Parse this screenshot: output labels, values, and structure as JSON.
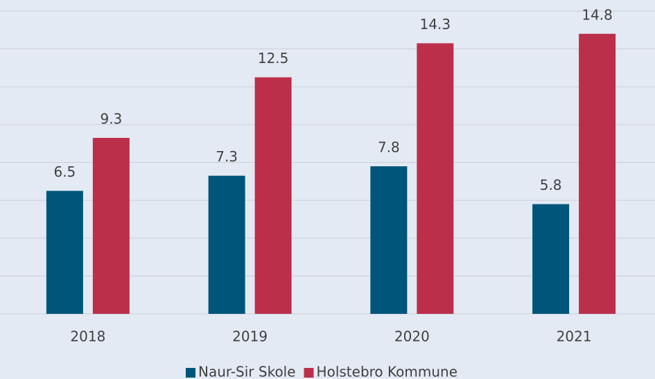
{
  "chart_data": {
    "type": "bar",
    "categories": [
      "2018",
      "2019",
      "2020",
      "2021"
    ],
    "series": [
      {
        "name": "Naur-Sir Skole",
        "color": "#00557a",
        "values": [
          6.5,
          7.3,
          7.8,
          5.8
        ]
      },
      {
        "name": "Holstebro Kommune",
        "color": "#bc2f4a",
        "values": [
          9.3,
          12.5,
          14.3,
          14.8
        ]
      }
    ],
    "ylim": [
      0,
      16
    ],
    "yticks": [
      0,
      2,
      4,
      6,
      8,
      10,
      12,
      14,
      16
    ],
    "grid": true,
    "legend": "bottom"
  }
}
